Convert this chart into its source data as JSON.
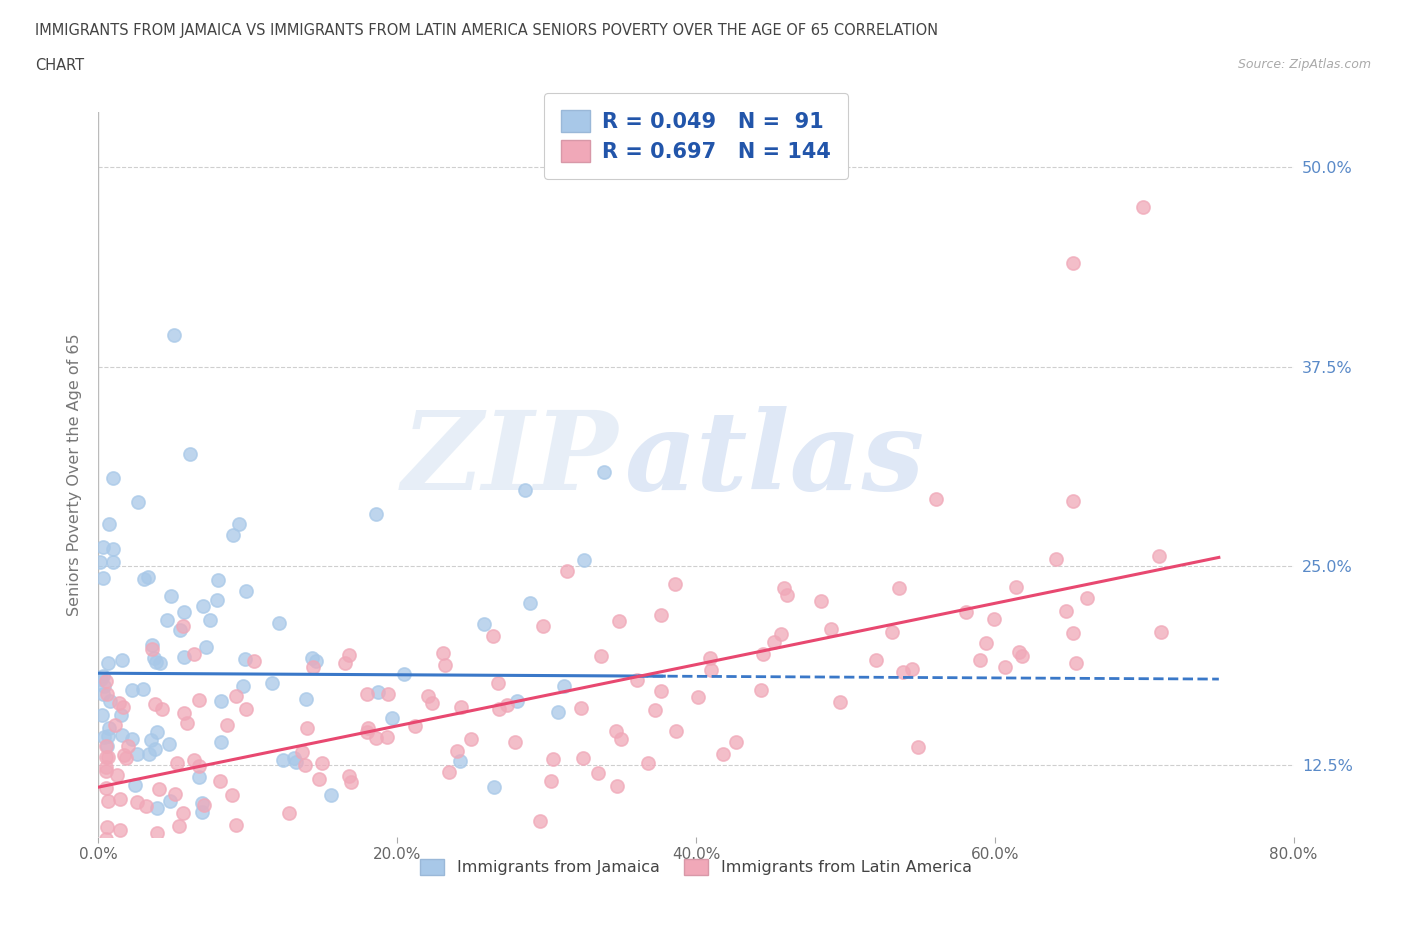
{
  "title_line1": "IMMIGRANTS FROM JAMAICA VS IMMIGRANTS FROM LATIN AMERICA SENIORS POVERTY OVER THE AGE OF 65 CORRELATION",
  "title_line2": "CHART",
  "source_text": "Source: ZipAtlas.com",
  "ylabel": "Seniors Poverty Over the Age of 65",
  "xlim": [
    0.0,
    0.8
  ],
  "ylim": [
    0.08,
    0.535
  ],
  "xtick_labels": [
    "0.0%",
    "20.0%",
    "40.0%",
    "60.0%",
    "80.0%"
  ],
  "xtick_values": [
    0.0,
    0.2,
    0.4,
    0.6,
    0.8
  ],
  "ytick_labels": [
    "12.5%",
    "25.0%",
    "37.5%",
    "50.0%"
  ],
  "ytick_values": [
    0.125,
    0.25,
    0.375,
    0.5
  ],
  "jamaica_color": "#a8c8e8",
  "latin_color": "#f0a8b8",
  "jamaica_R": 0.049,
  "jamaica_N": 91,
  "latin_R": 0.697,
  "latin_N": 144,
  "jamaica_line_color": "#3a78c8",
  "latin_line_color": "#e84870",
  "watermark1": "ZIP",
  "watermark2": "atlas",
  "legend_label_jamaica": "Immigrants from Jamaica",
  "legend_label_latin": "Immigrants from Latin America",
  "background_color": "#ffffff",
  "grid_color": "#bbbbbb",
  "tick_color": "#5a8ac8",
  "title_color": "#444444",
  "source_color": "#aaaaaa"
}
